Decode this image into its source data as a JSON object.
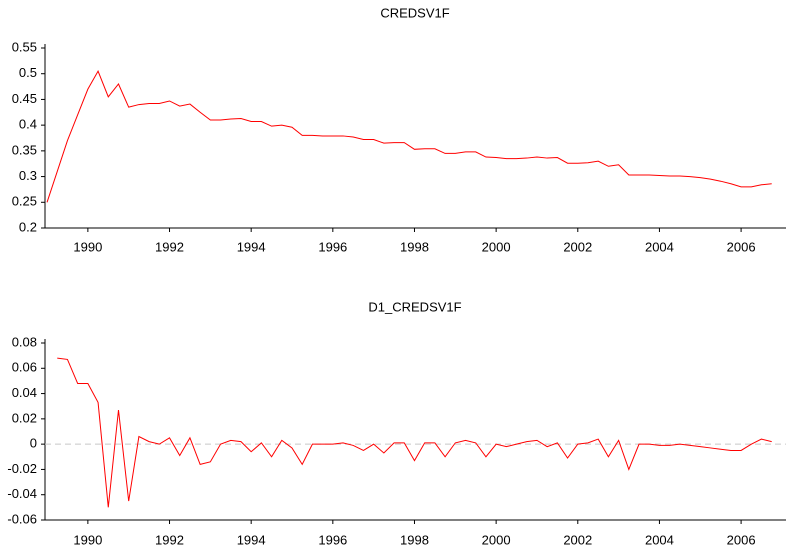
{
  "chart_data": [
    {
      "type": "line",
      "title": "CREDSV1F",
      "x": [
        1989,
        1989.25,
        1989.5,
        1989.75,
        1990,
        1990.25,
        1990.5,
        1990.75,
        1991,
        1991.25,
        1991.5,
        1991.75,
        1992,
        1992.25,
        1992.5,
        1992.75,
        1993,
        1993.25,
        1993.5,
        1993.75,
        1994,
        1994.25,
        1994.5,
        1994.75,
        1995,
        1995.25,
        1995.5,
        1995.75,
        1996,
        1996.25,
        1996.5,
        1996.75,
        1997,
        1997.25,
        1997.5,
        1997.75,
        1998,
        1998.25,
        1998.5,
        1998.75,
        1999,
        1999.25,
        1999.5,
        1999.75,
        2000,
        2000.25,
        2000.5,
        2000.75,
        2001,
        2001.25,
        2001.5,
        2001.75,
        2002,
        2002.25,
        2002.5,
        2002.75,
        2003,
        2003.25,
        2003.5,
        2003.75,
        2004,
        2004.25,
        2004.5,
        2004.75,
        2005,
        2005.25,
        2005.5,
        2005.75,
        2006,
        2006.25,
        2006.5,
        2006.75
      ],
      "series": [
        {
          "color": "#ff0000",
          "values": [
            0.25,
            0.31,
            0.37,
            0.42,
            0.47,
            0.505,
            0.455,
            0.48,
            0.435,
            0.44,
            0.442,
            0.442,
            0.447,
            0.437,
            0.441,
            0.425,
            0.41,
            0.41,
            0.412,
            0.413,
            0.407,
            0.407,
            0.398,
            0.4,
            0.396,
            0.38,
            0.38,
            0.379,
            0.379,
            0.379,
            0.377,
            0.372,
            0.372,
            0.365,
            0.366,
            0.366,
            0.353,
            0.354,
            0.354,
            0.345,
            0.345,
            0.348,
            0.348,
            0.338,
            0.337,
            0.335,
            0.335,
            0.336,
            0.338,
            0.336,
            0.337,
            0.326,
            0.326,
            0.327,
            0.33,
            0.32,
            0.323,
            0.303,
            0.303,
            0.303,
            0.302,
            0.301,
            0.301,
            0.3,
            0.298,
            0.295,
            0.291,
            0.286,
            0.28,
            0.28,
            0.284,
            0.286
          ]
        }
      ],
      "xlim": [
        1988.95,
        2007.1
      ],
      "xticks": [
        1990,
        1992,
        1994,
        1996,
        1998,
        2000,
        2002,
        2004,
        2006
      ],
      "ylim": [
        0.2,
        0.55
      ],
      "yticks": [
        0.2,
        0.25,
        0.3,
        0.35,
        0.4,
        0.45,
        0.5,
        0.55
      ]
    },
    {
      "type": "line",
      "title": "D1_CREDSV1F",
      "x": [
        1989,
        1989.25,
        1989.5,
        1989.75,
        1990,
        1990.25,
        1990.5,
        1990.75,
        1991,
        1991.25,
        1991.5,
        1991.75,
        1992,
        1992.25,
        1992.5,
        1992.75,
        1993,
        1993.25,
        1993.5,
        1993.75,
        1994,
        1994.25,
        1994.5,
        1994.75,
        1995,
        1995.25,
        1995.5,
        1995.75,
        1996,
        1996.25,
        1996.5,
        1996.75,
        1997,
        1997.25,
        1997.5,
        1997.75,
        1998,
        1998.25,
        1998.5,
        1998.75,
        1999,
        1999.25,
        1999.5,
        1999.75,
        2000,
        2000.25,
        2000.5,
        2000.75,
        2001,
        2001.25,
        2001.5,
        2001.75,
        2002,
        2002.25,
        2002.5,
        2002.75,
        2003,
        2003.25,
        2003.5,
        2003.75,
        2004,
        2004.25,
        2004.5,
        2004.75,
        2005,
        2005.25,
        2005.5,
        2005.75,
        2006,
        2006.25,
        2006.5,
        2006.75
      ],
      "series": [
        {
          "color": "#ff0000",
          "values": [
            null,
            0.068,
            0.067,
            0.048,
            0.048,
            0.033,
            -0.05,
            0.027,
            -0.045,
            0.006,
            0.002,
            0,
            0.005,
            -0.009,
            0.005,
            -0.016,
            -0.014,
            0,
            0.003,
            0.002,
            -0.006,
            0.001,
            -0.01,
            0.003,
            -0.003,
            -0.016,
            0,
            0,
            0,
            0.001,
            -0.001,
            -0.005,
            0,
            -0.007,
            0.001,
            0.001,
            -0.013,
            0.001,
            0.001,
            -0.01,
            0.001,
            0.003,
            0.001,
            -0.01,
            0,
            -0.002,
            0,
            0.002,
            0.003,
            -0.002,
            0.001,
            -0.011,
            0,
            0.001,
            0.004,
            -0.01,
            0.003,
            -0.02,
            0,
            0,
            -0.001,
            -0.001,
            0,
            -0.001,
            -0.002,
            -0.003,
            -0.004,
            -0.005,
            -0.005,
            0,
            0.004,
            0.002
          ]
        }
      ],
      "xlim": [
        1988.95,
        2007.1
      ],
      "xticks": [
        1990,
        1992,
        1994,
        1996,
        1998,
        2000,
        2002,
        2004,
        2006
      ],
      "ylim": [
        -0.06,
        0.08
      ],
      "yticks": [
        -0.06,
        -0.04,
        -0.02,
        0,
        0.02,
        0.04,
        0.06,
        0.08
      ],
      "reference_line": 0
    }
  ]
}
